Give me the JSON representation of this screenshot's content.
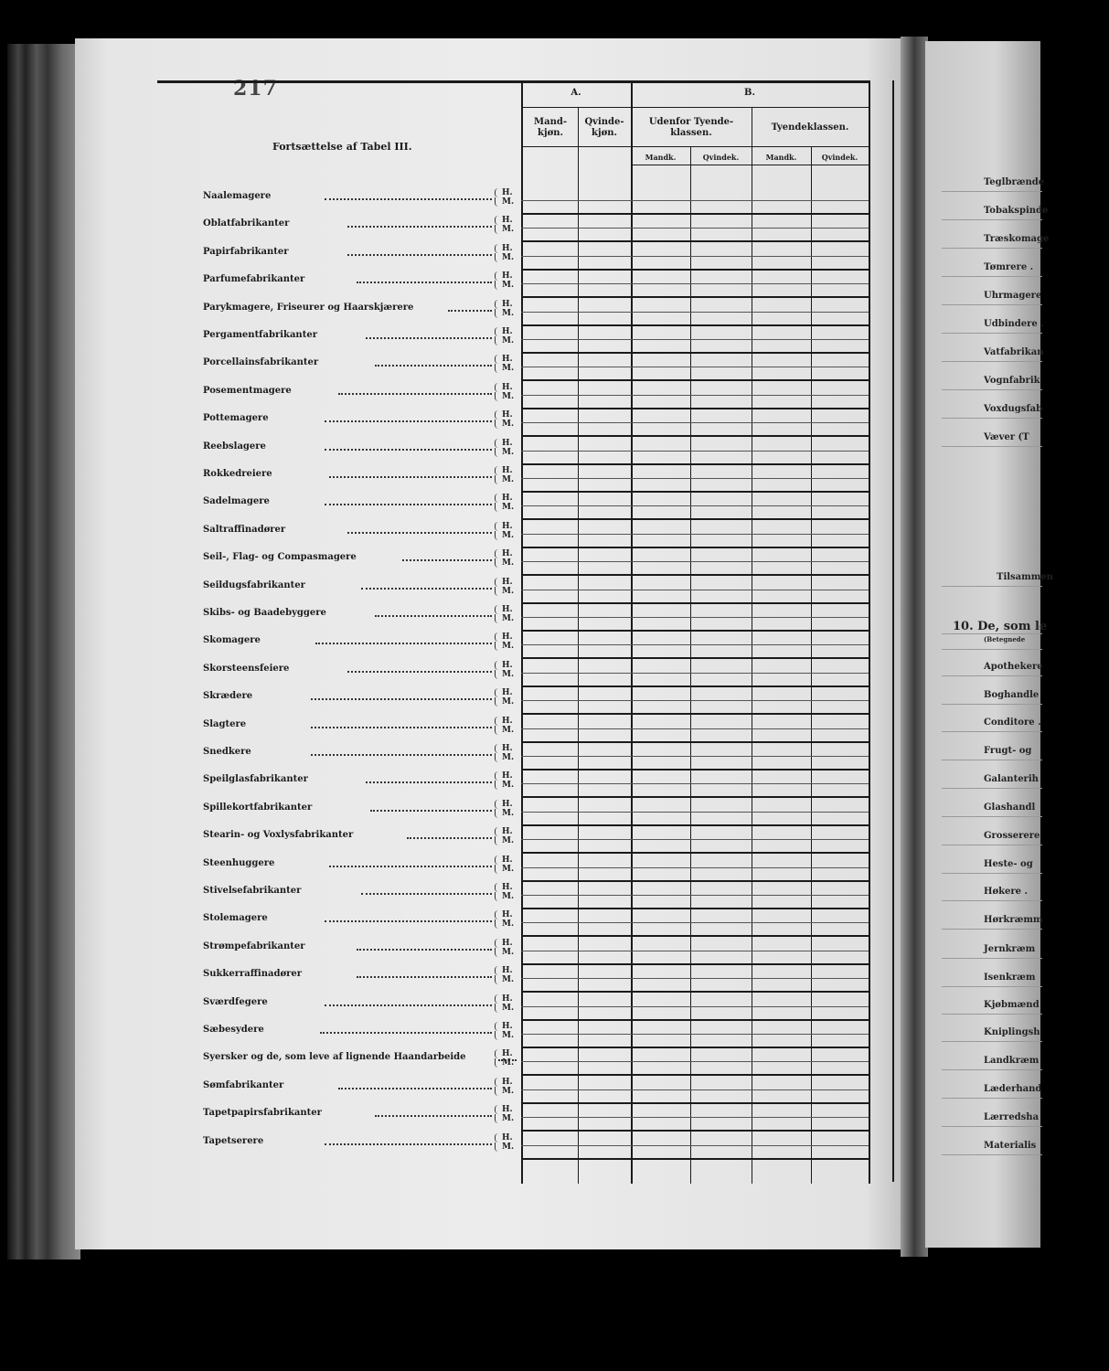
{
  "page_number": "217",
  "title": "Fortsættelse af Tabel III.",
  "header": {
    "group_a": "A.",
    "group_b": "B.",
    "col_mandkjon": "Mand-\nkjøn.",
    "col_qvindekjon": "Qvinde-\nkjøn.",
    "col_udenfor": "Udenfor Tyende-\nklassen.",
    "col_tyendeklassen": "Tyendeklassen.",
    "sub_mandk_1": "Mandk.",
    "sub_qvindek_1": "Qvindek.",
    "sub_mandk_2": "Mandk.",
    "sub_qvindek_2": "Qvindek."
  },
  "sex_markers": {
    "h": "H.",
    "m": "M."
  },
  "rows": [
    "Naalemagere",
    "Oblatfabrikanter",
    "Papirfabrikanter",
    "Parfumefabrikanter",
    "Parykmagere, Friseurer og Haarskjærere",
    "Pergamentfabrikanter",
    "Porcellainsfabrikanter",
    "Posementmagere",
    "Pottemagere",
    "Reebslagere",
    "Rokkedreiere",
    "Sadelmagere",
    "Saltraffinadører",
    "Seil-, Flag- og Compasmagere",
    "Seildugsfabrikanter",
    "Skibs- og Baadebyggere",
    "Skomagere",
    "Skorsteensfeiere",
    "Skrædere",
    "Slagtere",
    "Snedkere",
    "Speilglasfabrikanter",
    "Spillekortfabrikanter",
    "Stearin- og Voxlysfabrikanter",
    "Steenhuggere",
    "Stivelsefabrikanter",
    "Stolemagere",
    "Strømpefabrikanter",
    "Sukkerraffinadører",
    "Sværdfegere",
    "Sæbesydere",
    "Syersker og de, som leve af lignende Haandarbeide",
    "Sømfabrikanter",
    "Tapetpapirsfabrikanter",
    "Tapetserere"
  ],
  "right_page": [
    "Teglbrænde",
    "Tobakspinde",
    "Træskomage",
    "Tømrere .",
    "Uhrmagere",
    "Udbindere .",
    "Vatfabrikan",
    "Vognfabrik",
    "Voxdugsfab",
    "Væver (T",
    "Tilsammen",
    "10. De, som le",
    "(Betegnede",
    "Apothekere",
    "Boghandle",
    "Conditore .",
    "Frugt- og",
    "Galanterih",
    "Glashandl",
    "Grosserere",
    "Heste- og",
    "Høkere .",
    "Hørkræmm",
    "Jernkræm",
    "Isenkræm",
    "Kjøbmænd",
    "Kniplingsh",
    "Landkræm",
    "Læderhand",
    "Lærredsha",
    "Materialis"
  ]
}
